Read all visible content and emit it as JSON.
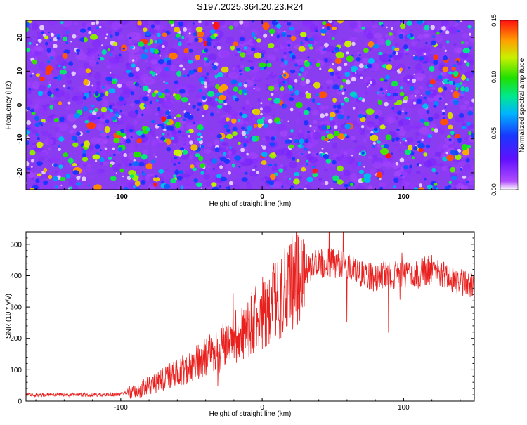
{
  "title": "S197.2025.364.20.23.R24",
  "chart_data": [
    {
      "type": "heatmap",
      "xlabel": "Height of straight line (km)",
      "ylabel": "Frequency (Hz)",
      "xlim": [
        -167,
        150
      ],
      "ylim": [
        -25,
        25
      ],
      "xticks": [
        -100,
        0,
        100
      ],
      "xtick_labels": [
        "-100",
        "0",
        "100"
      ],
      "yticks": [
        -20,
        -10,
        0,
        10,
        20
      ],
      "ytick_labels": [
        "-20",
        "-10",
        "0",
        "10",
        "20"
      ],
      "colorbar": {
        "label": "Normalized spectral amplitude",
        "range": [
          0.0,
          0.15
        ],
        "ticks": [
          0.0,
          0.05,
          0.1,
          0.15
        ],
        "tick_labels": [
          "0.00",
          "0.05",
          "0.10",
          "0.15"
        ]
      },
      "description": "Noisy speckle field of normalized spectral amplitude; mostly blue/purple (~0.02-0.05) with scattered green/yellow/red hot spots up to ~0.15"
    },
    {
      "type": "line",
      "xlabel": "Height of straight line (km)",
      "ylabel": "SNR (10 * v/v)",
      "xlim": [
        -167,
        150
      ],
      "ylim": [
        0,
        540
      ],
      "xticks": [
        -100,
        0,
        100
      ],
      "xtick_labels": [
        "-100",
        "0",
        "100"
      ],
      "yticks": [
        0,
        100,
        200,
        300,
        400,
        500
      ],
      "ytick_labels": [
        "0",
        "100",
        "200",
        "300",
        "400",
        "500"
      ],
      "color": "#e8201e",
      "x": [
        -167,
        -140,
        -120,
        -100,
        -90,
        -80,
        -70,
        -60,
        -50,
        -40,
        -30,
        -20,
        -10,
        0,
        10,
        20,
        30,
        40,
        50,
        60,
        70,
        80,
        90,
        100,
        110,
        120,
        130,
        140,
        150
      ],
      "y": [
        20,
        20,
        20,
        22,
        30,
        50,
        70,
        90,
        110,
        140,
        170,
        200,
        240,
        280,
        320,
        380,
        420,
        440,
        440,
        430,
        405,
        395,
        400,
        400,
        410,
        420,
        400,
        380,
        360
      ]
    }
  ]
}
